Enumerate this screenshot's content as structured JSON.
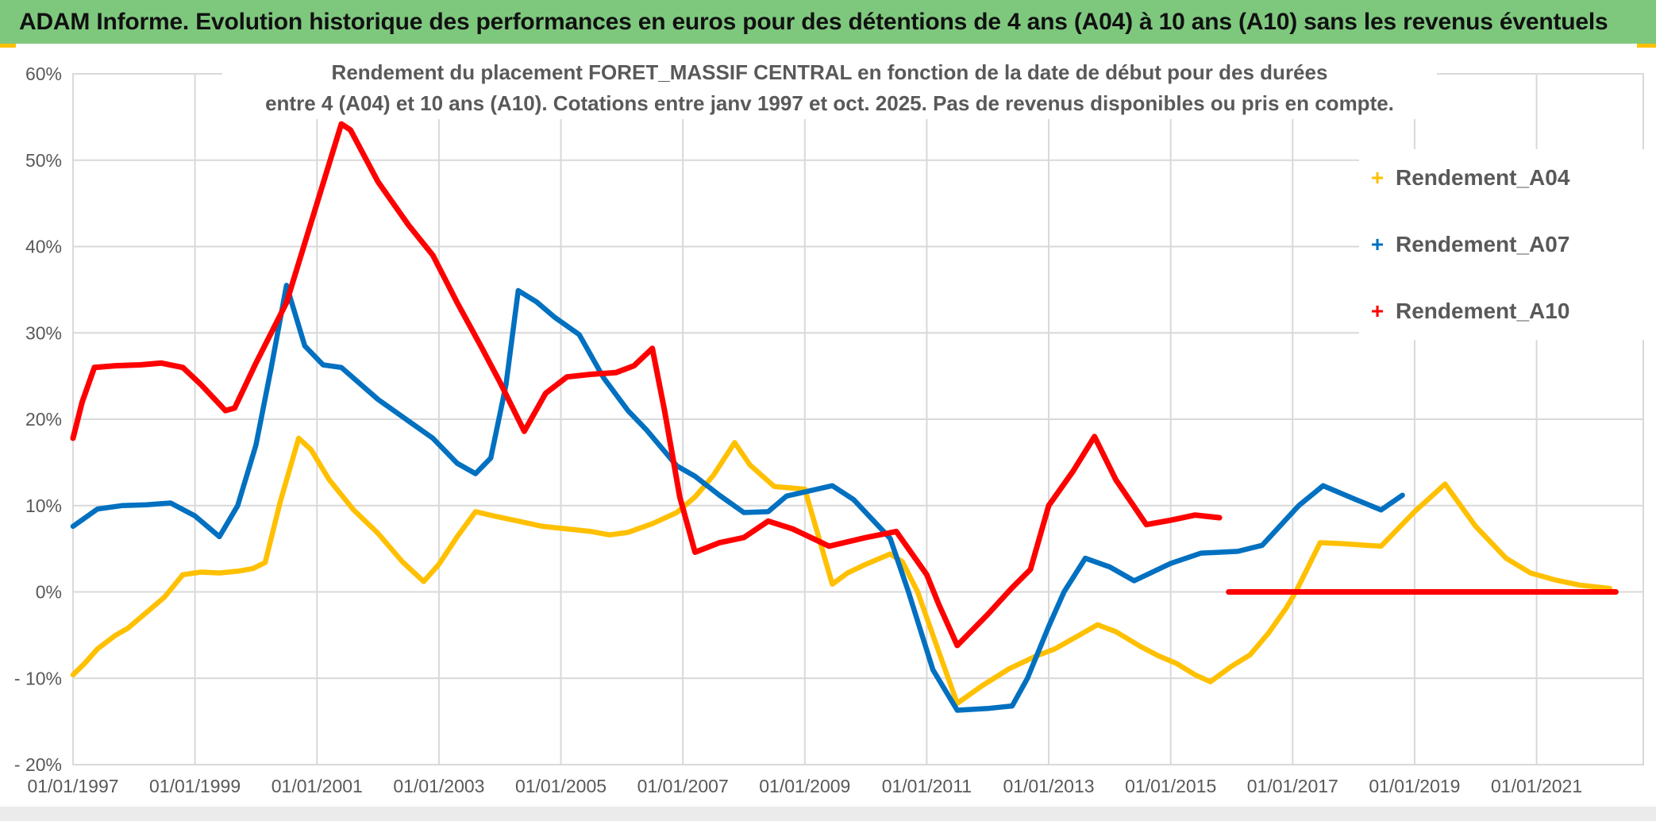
{
  "window": {
    "titlebar": "ADAM Informe. Evolution historique des performances en euros pour des détentions de 4 ans (A04) à 10 ans (A10) sans les revenus éventuels"
  },
  "chart_data": {
    "type": "line",
    "title_line1": "Rendement du placement FORET_MASSIF CENTRAL en fonction de la date de début pour des durées",
    "title_line2": "entre 4 (A04) et 10 ans (A10). Cotations entre janv 1997 et oct. 2025. Pas de revenus disponibles ou pris en compte.",
    "legend": {
      "position": "right",
      "marker_glyph": "+",
      "entries": [
        {
          "label": "Rendement_A04",
          "color": "#FFC000"
        },
        {
          "label": "Rendement_A07",
          "color": "#0070C0"
        },
        {
          "label": "Rendement_A10",
          "color": "#FF0000"
        }
      ]
    },
    "axes": {
      "grid": true,
      "xlim": [
        1997,
        2022.75
      ],
      "ylim": [
        -20,
        60
      ],
      "x_ticks": [
        {
          "label": "01/01/1997",
          "year": 1997
        },
        {
          "label": "01/01/1999",
          "year": 1999
        },
        {
          "label": "01/01/2001",
          "year": 2001
        },
        {
          "label": "01/01/2003",
          "year": 2003
        },
        {
          "label": "01/01/2005",
          "year": 2005
        },
        {
          "label": "01/01/2007",
          "year": 2007
        },
        {
          "label": "01/01/2009",
          "year": 2009
        },
        {
          "label": "01/01/2011",
          "year": 2011
        },
        {
          "label": "01/01/2013",
          "year": 2013
        },
        {
          "label": "01/01/2015",
          "year": 2015
        },
        {
          "label": "01/01/2017",
          "year": 2017
        },
        {
          "label": "01/01/2019",
          "year": 2019
        },
        {
          "label": "01/01/2021",
          "year": 2021
        }
      ],
      "y_ticks": [
        {
          "label": "60%",
          "value": 60
        },
        {
          "label": "50%",
          "value": 50
        },
        {
          "label": "40%",
          "value": 40
        },
        {
          "label": "30%",
          "value": 30
        },
        {
          "label": "20%",
          "value": 20
        },
        {
          "label": "10%",
          "value": 10
        },
        {
          "label": "0%",
          "value": 0
        },
        {
          "label": "- 10%",
          "value": -10
        },
        {
          "label": "- 20%",
          "value": -20
        }
      ]
    },
    "series": [
      {
        "name": "Rendement_A04",
        "color": "#FFC000",
        "width": 6.5,
        "segments": [
          [
            [
              1997.0,
              -9.6
            ],
            [
              1997.2,
              -8.2
            ],
            [
              1997.4,
              -6.6
            ],
            [
              1997.7,
              -5.0
            ],
            [
              1997.9,
              -4.2
            ],
            [
              1998.2,
              -2.4
            ],
            [
              1998.5,
              -0.6
            ],
            [
              1998.8,
              2.0
            ],
            [
              1999.1,
              2.3
            ],
            [
              1999.4,
              2.2
            ],
            [
              1999.7,
              2.4
            ],
            [
              1999.95,
              2.7
            ],
            [
              2000.15,
              3.4
            ],
            [
              2000.4,
              10.5
            ],
            [
              2000.7,
              17.8
            ],
            [
              2000.9,
              16.5
            ],
            [
              2001.2,
              13.0
            ],
            [
              2001.6,
              9.5
            ],
            [
              2002.0,
              6.8
            ],
            [
              2002.4,
              3.5
            ],
            [
              2002.75,
              1.2
            ],
            [
              2003.0,
              3.2
            ],
            [
              2003.3,
              6.4
            ],
            [
              2003.6,
              9.3
            ],
            [
              2003.9,
              8.8
            ],
            [
              2004.3,
              8.2
            ],
            [
              2004.7,
              7.6
            ],
            [
              2005.1,
              7.3
            ],
            [
              2005.5,
              7.0
            ],
            [
              2005.8,
              6.6
            ],
            [
              2006.1,
              6.9
            ],
            [
              2006.5,
              7.9
            ],
            [
              2006.9,
              9.2
            ],
            [
              2007.2,
              11.0
            ],
            [
              2007.5,
              13.5
            ],
            [
              2007.85,
              17.3
            ],
            [
              2008.1,
              14.7
            ],
            [
              2008.5,
              12.2
            ],
            [
              2009.0,
              11.9
            ],
            [
              2009.45,
              0.9
            ],
            [
              2009.7,
              2.2
            ],
            [
              2010.0,
              3.2
            ],
            [
              2010.4,
              4.4
            ],
            [
              2010.6,
              3.5
            ],
            [
              2010.85,
              0.0
            ],
            [
              2011.2,
              -7.0
            ],
            [
              2011.5,
              -12.9
            ],
            [
              2011.9,
              -10.9
            ],
            [
              2012.35,
              -8.9
            ],
            [
              2012.8,
              -7.4
            ],
            [
              2013.1,
              -6.6
            ],
            [
              2013.5,
              -5.0
            ],
            [
              2013.8,
              -3.8
            ],
            [
              2014.1,
              -4.6
            ],
            [
              2014.5,
              -6.3
            ],
            [
              2014.8,
              -7.4
            ],
            [
              2015.1,
              -8.3
            ],
            [
              2015.4,
              -9.6
            ],
            [
              2015.65,
              -10.4
            ],
            [
              2016.0,
              -8.6
            ],
            [
              2016.3,
              -7.3
            ],
            [
              2016.6,
              -4.8
            ],
            [
              2016.9,
              -1.8
            ],
            [
              2017.05,
              0.0
            ],
            [
              2017.45,
              5.7
            ],
            [
              2017.8,
              5.6
            ],
            [
              2018.2,
              5.4
            ],
            [
              2018.45,
              5.3
            ],
            [
              2019.0,
              9.3
            ],
            [
              2019.5,
              12.5
            ],
            [
              2020.0,
              7.6
            ],
            [
              2020.5,
              3.9
            ],
            [
              2020.9,
              2.2
            ],
            [
              2021.3,
              1.4
            ],
            [
              2021.7,
              0.8
            ],
            [
              2022.2,
              0.4
            ]
          ]
        ]
      },
      {
        "name": "Rendement_A07",
        "color": "#0070C0",
        "width": 6.5,
        "segments": [
          [
            [
              1997.0,
              7.6
            ],
            [
              1997.4,
              9.6
            ],
            [
              1997.8,
              10.0
            ],
            [
              1998.2,
              10.1
            ],
            [
              1998.6,
              10.3
            ],
            [
              1999.0,
              8.8
            ],
            [
              1999.4,
              6.4
            ],
            [
              1999.7,
              10.0
            ],
            [
              2000.0,
              17.0
            ],
            [
              2000.25,
              26.0
            ],
            [
              2000.5,
              35.5
            ],
            [
              2000.8,
              28.5
            ],
            [
              2001.1,
              26.3
            ],
            [
              2001.4,
              26.0
            ],
            [
              2002.0,
              22.3
            ],
            [
              2002.5,
              19.8
            ],
            [
              2002.9,
              17.8
            ],
            [
              2003.3,
              14.9
            ],
            [
              2003.6,
              13.7
            ],
            [
              2003.85,
              15.5
            ],
            [
              2004.1,
              24.0
            ],
            [
              2004.3,
              34.9
            ],
            [
              2004.6,
              33.6
            ],
            [
              2004.9,
              31.8
            ],
            [
              2005.3,
              29.8
            ],
            [
              2005.7,
              24.8
            ],
            [
              2006.1,
              21.0
            ],
            [
              2006.4,
              18.8
            ],
            [
              2006.9,
              14.6
            ],
            [
              2007.2,
              13.4
            ],
            [
              2007.6,
              11.2
            ],
            [
              2008.0,
              9.2
            ],
            [
              2008.4,
              9.3
            ],
            [
              2008.7,
              11.1
            ],
            [
              2009.45,
              12.3
            ],
            [
              2009.8,
              10.7
            ],
            [
              2010.4,
              6.2
            ],
            [
              2010.7,
              0.0
            ],
            [
              2011.1,
              -9.0
            ],
            [
              2011.5,
              -13.7
            ],
            [
              2012.0,
              -13.5
            ],
            [
              2012.4,
              -13.2
            ],
            [
              2012.65,
              -10.0
            ],
            [
              2013.0,
              -4.0
            ],
            [
              2013.25,
              0.0
            ],
            [
              2013.6,
              3.9
            ],
            [
              2014.0,
              2.9
            ],
            [
              2014.4,
              1.3
            ],
            [
              2015.0,
              3.3
            ],
            [
              2015.5,
              4.5
            ],
            [
              2016.1,
              4.7
            ],
            [
              2016.5,
              5.4
            ],
            [
              2017.1,
              10.0
            ],
            [
              2017.5,
              12.3
            ],
            [
              2018.0,
              10.8
            ],
            [
              2018.45,
              9.5
            ],
            [
              2018.8,
              11.2
            ]
          ]
        ]
      },
      {
        "name": "Rendement_A10",
        "color": "#FF0000",
        "width": 7,
        "segments": [
          [
            [
              1997.0,
              17.8
            ],
            [
              1997.15,
              22.0
            ],
            [
              1997.35,
              26.0
            ],
            [
              1997.7,
              26.2
            ],
            [
              1998.1,
              26.3
            ],
            [
              1998.45,
              26.5
            ],
            [
              1998.8,
              26.0
            ],
            [
              1999.1,
              24.0
            ],
            [
              1999.5,
              21.0
            ],
            [
              1999.65,
              21.3
            ],
            [
              2000.0,
              26.5
            ],
            [
              2000.5,
              33.5
            ],
            [
              2001.0,
              45.0
            ],
            [
              2001.4,
              54.2
            ],
            [
              2001.55,
              53.5
            ],
            [
              2002.0,
              47.5
            ],
            [
              2002.5,
              42.5
            ],
            [
              2002.9,
              39.0
            ],
            [
              2003.3,
              33.5
            ],
            [
              2003.7,
              28.3
            ],
            [
              2004.0,
              24.3
            ],
            [
              2004.4,
              18.6
            ],
            [
              2004.75,
              23.0
            ],
            [
              2005.1,
              24.9
            ],
            [
              2005.5,
              25.2
            ],
            [
              2005.9,
              25.4
            ],
            [
              2006.2,
              26.2
            ],
            [
              2006.5,
              28.2
            ],
            [
              2006.7,
              21.0
            ],
            [
              2006.95,
              11.0
            ],
            [
              2007.2,
              4.6
            ],
            [
              2007.6,
              5.7
            ],
            [
              2008.0,
              6.3
            ],
            [
              2008.4,
              8.2
            ],
            [
              2008.8,
              7.3
            ],
            [
              2009.4,
              5.3
            ],
            [
              2010.0,
              6.3
            ],
            [
              2010.5,
              7.0
            ],
            [
              2011.0,
              2.0
            ],
            [
              2011.2,
              -1.5
            ],
            [
              2011.5,
              -6.2
            ],
            [
              2012.0,
              -2.6
            ],
            [
              2012.4,
              0.5
            ],
            [
              2012.7,
              2.6
            ],
            [
              2013.0,
              10.0
            ],
            [
              2013.4,
              14.0
            ],
            [
              2013.75,
              18.0
            ],
            [
              2014.1,
              13.0
            ],
            [
              2014.6,
              7.8
            ],
            [
              2015.0,
              8.3
            ],
            [
              2015.4,
              8.9
            ],
            [
              2015.8,
              8.6
            ]
          ],
          [
            [
              2015.95,
              0.0
            ],
            [
              2022.3,
              0.0
            ]
          ]
        ]
      }
    ]
  }
}
